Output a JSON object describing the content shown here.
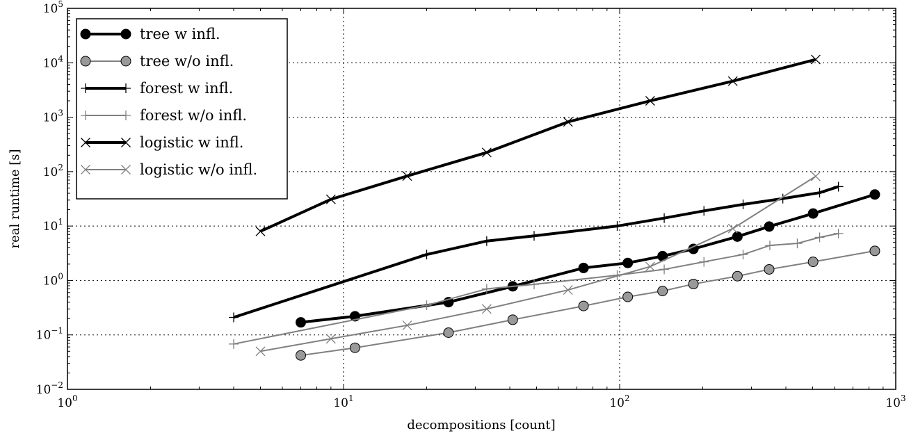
{
  "chart_data": {
    "type": "line",
    "xlabel": "decompositions [count]",
    "ylabel": "real runtime [s]",
    "xscale": "log",
    "yscale": "log",
    "xlim": [
      1,
      1000
    ],
    "ylim": [
      0.01,
      100000
    ],
    "grid": true,
    "legend_position": "top-left",
    "x_ticks": [
      1,
      10,
      100,
      1000
    ],
    "y_ticks": [
      0.01,
      0.1,
      1,
      10,
      100,
      1000,
      10000,
      100000
    ],
    "series": [
      {
        "name": "tree w infl.",
        "color": "#000000",
        "width": 4,
        "marker": "circle",
        "marker_fill": "#000000",
        "x": [
          7,
          11,
          24,
          41,
          74,
          107,
          143,
          185,
          267,
          348,
          502,
          840
        ],
        "y": [
          0.17,
          0.22,
          0.4,
          0.78,
          1.7,
          2.1,
          2.8,
          3.8,
          6.4,
          9.8,
          17,
          38
        ]
      },
      {
        "name": "tree w/o infl.",
        "color": "#808080",
        "width": 2,
        "marker": "circle",
        "marker_fill": "#999999",
        "x": [
          7,
          11,
          24,
          41,
          74,
          107,
          143,
          185,
          267,
          348,
          502,
          840
        ],
        "y": [
          0.042,
          0.058,
          0.11,
          0.19,
          0.34,
          0.5,
          0.64,
          0.86,
          1.2,
          1.6,
          2.2,
          3.5
        ]
      },
      {
        "name": "forest w infl.",
        "color": "#000000",
        "width": 4,
        "marker": "plus",
        "x": [
          4,
          20,
          33,
          49,
          98,
          145,
          202,
          280,
          390,
          530,
          620
        ],
        "y": [
          0.21,
          3.0,
          5.3,
          6.6,
          10,
          14,
          19,
          25,
          32,
          41,
          53
        ]
      },
      {
        "name": "forest w/o infl.",
        "color": "#808080",
        "width": 2,
        "marker": "plus",
        "x": [
          4,
          20,
          33,
          49,
          98,
          145,
          202,
          280,
          350,
          440,
          530,
          620
        ],
        "y": [
          0.068,
          0.35,
          0.7,
          0.85,
          1.25,
          1.6,
          2.2,
          3.0,
          4.4,
          4.8,
          6.2,
          7.3
        ]
      },
      {
        "name": "logistic w infl.",
        "color": "#000000",
        "width": 4,
        "marker": "x",
        "x": [
          5,
          9,
          17,
          33,
          65,
          129,
          257,
          513
        ],
        "y": [
          8,
          31,
          83,
          225,
          820,
          2000,
          4600,
          11500
        ]
      },
      {
        "name": "logistic w/o infl.",
        "color": "#808080",
        "width": 2,
        "marker": "x",
        "x": [
          5,
          9,
          17,
          33,
          65,
          129,
          257,
          513
        ],
        "y": [
          0.05,
          0.085,
          0.15,
          0.3,
          0.67,
          1.8,
          9,
          82
        ]
      }
    ]
  }
}
